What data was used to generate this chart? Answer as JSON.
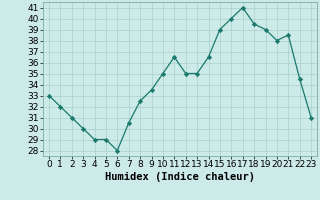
{
  "x": [
    0,
    1,
    2,
    3,
    4,
    5,
    6,
    7,
    8,
    9,
    10,
    11,
    12,
    13,
    14,
    15,
    16,
    17,
    18,
    19,
    20,
    21,
    22,
    23
  ],
  "y": [
    33,
    32,
    31,
    30,
    29,
    29,
    28,
    30.5,
    32.5,
    33.5,
    35,
    36.5,
    35,
    35,
    36.5,
    39,
    40,
    41,
    39.5,
    39,
    38,
    38.5,
    34.5,
    31
  ],
  "xlabel": "Humidex (Indice chaleur)",
  "xlim": [
    -0.5,
    23.5
  ],
  "ylim": [
    27.5,
    41.5
  ],
  "yticks": [
    28,
    29,
    30,
    31,
    32,
    33,
    34,
    35,
    36,
    37,
    38,
    39,
    40,
    41
  ],
  "xticks": [
    0,
    1,
    2,
    3,
    4,
    5,
    6,
    7,
    8,
    9,
    10,
    11,
    12,
    13,
    14,
    15,
    16,
    17,
    18,
    19,
    20,
    21,
    22,
    23
  ],
  "line_color": "#1a7a6e",
  "marker_color": "#1a7a6e",
  "bg_color": "#cceae7",
  "grid_color": "#aacfcc",
  "tick_fontsize": 6.5,
  "label_fontsize": 7.5
}
